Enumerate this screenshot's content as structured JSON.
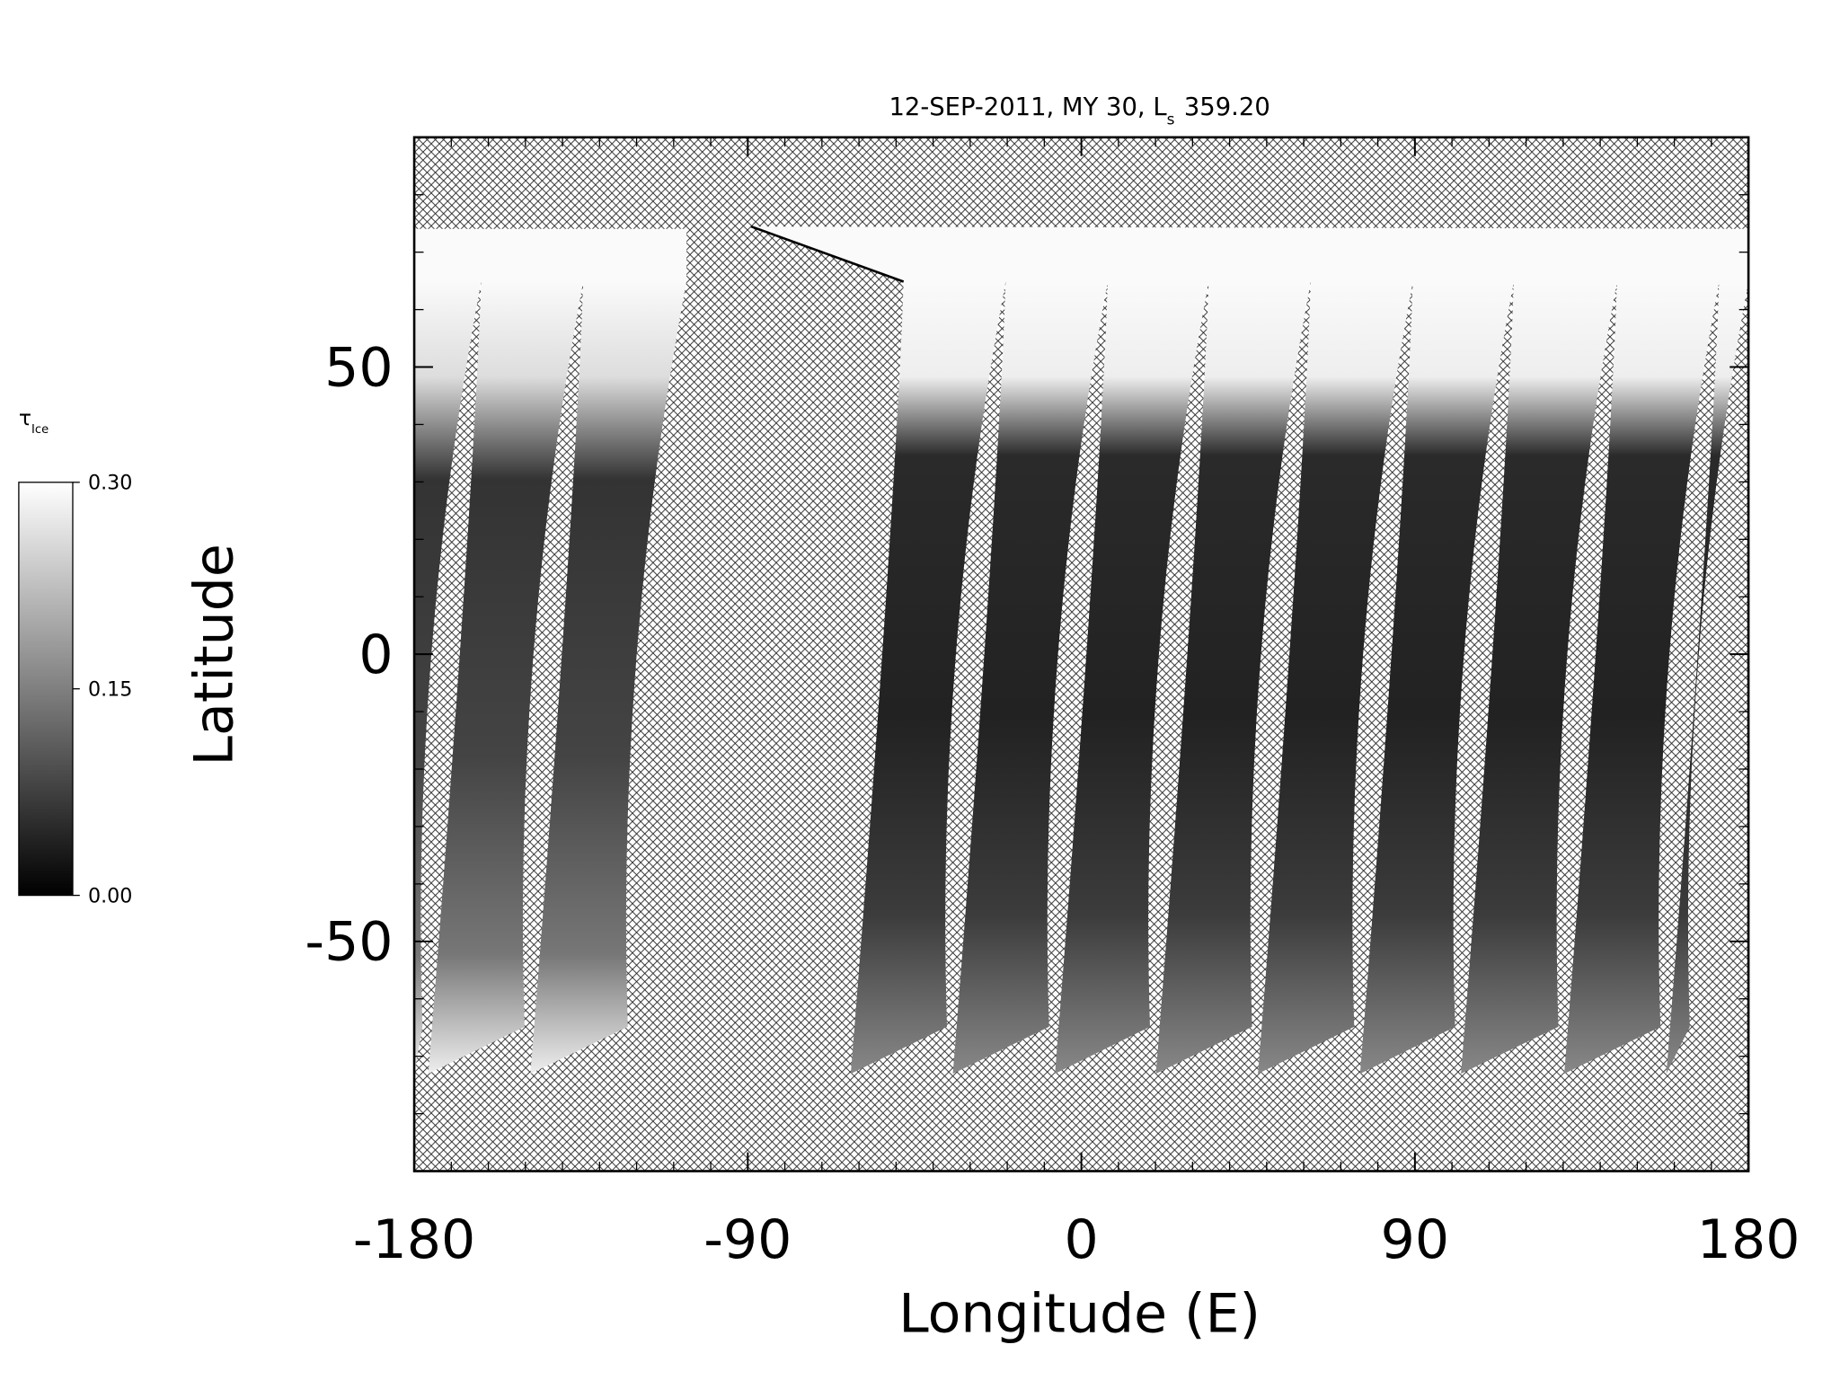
{
  "chart_data": {
    "type": "map",
    "title": {
      "text": "12-SEP-2011, MY 30,  L",
      "subscript": "s",
      "suffix": "359.20"
    },
    "xlabel": "Longitude (E)",
    "ylabel": "Latitude",
    "xlim": [
      -180,
      180
    ],
    "ylim": [
      -90,
      90
    ],
    "xticks": [
      -180,
      -90,
      0,
      90,
      180
    ],
    "yticks": [
      -50,
      0,
      50
    ],
    "xminorticks": [
      -170,
      -160,
      -150,
      -140,
      -130,
      -120,
      -110,
      -100,
      -80,
      -70,
      -60,
      -50,
      -40,
      -30,
      -20,
      -10,
      10,
      20,
      30,
      40,
      50,
      60,
      70,
      80,
      100,
      110,
      120,
      130,
      140,
      150,
      160,
      170
    ],
    "yminorticks": [
      -80,
      -70,
      -60,
      -40,
      -30,
      -20,
      -10,
      10,
      20,
      30,
      40,
      60,
      70,
      80
    ],
    "colorbar": {
      "label": "τ",
      "label_subscript": "Ice",
      "clim": [
        0,
        0.3
      ],
      "ticks": [
        {
          "value": 0,
          "label": "0.00"
        },
        {
          "value": 0.15,
          "label": "0.15"
        },
        {
          "value": 0.3,
          "label": "0.30"
        }
      ]
    }
  }
}
